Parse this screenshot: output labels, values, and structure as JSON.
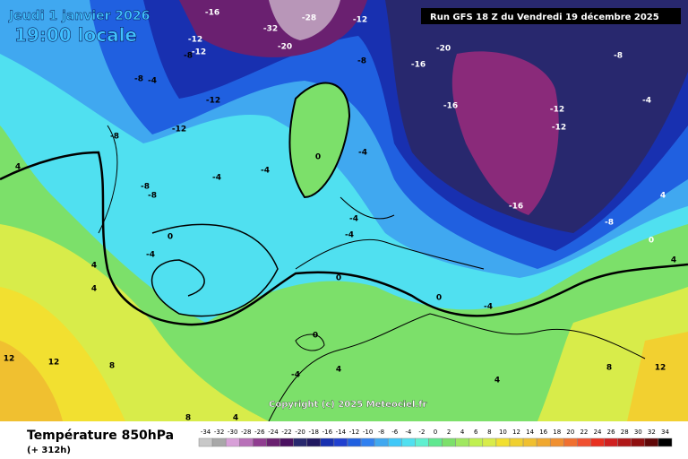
{
  "header": {
    "date": "Jeudi 1 janvier 2026",
    "time": "19:00 locale",
    "run": "Run GFS 18 Z du Vendredi 19 décembre 2025"
  },
  "footer": {
    "copyright": "Copyright (c) 2025 Meteociel.fr",
    "field": "Température 850hPa",
    "lead": "(+ 312h)"
  },
  "legend": {
    "labels": [
      "-34",
      "-32",
      "-30",
      "-28",
      "-26",
      "-24",
      "-22",
      "-20",
      "-18",
      "-16",
      "-14",
      "-12",
      "-10",
      "-8",
      "-6",
      "-4",
      "-2",
      "0",
      "2",
      "4",
      "6",
      "8",
      "10",
      "12",
      "14",
      "16",
      "18",
      "20",
      "22",
      "24",
      "26",
      "28",
      "30",
      "32",
      "34"
    ],
    "colors": [
      "#c8c8c8",
      "#a8a8a8",
      "#d8a0d8",
      "#b870b8",
      "#903c90",
      "#6a2070",
      "#4a1060",
      "#28286e",
      "#201860",
      "#1830b0",
      "#2040d0",
      "#2060e0",
      "#3080f0",
      "#40a8f0",
      "#40c8f8",
      "#50e0f0",
      "#60f0d0",
      "#60e890",
      "#7ce06a",
      "#a0e860",
      "#c0f050",
      "#d8ec4a",
      "#f2e030",
      "#f0d030",
      "#f0c030",
      "#f0a830",
      "#f09030",
      "#f07030",
      "#f05030",
      "#e83020",
      "#d02020",
      "#b01818",
      "#901010",
      "#600808",
      "#000000"
    ]
  },
  "map_labels": [
    "-16",
    "-12",
    "-12",
    "-8",
    "-8",
    "-4",
    "-12",
    "-12",
    "-8",
    "-4",
    "-8",
    "-8",
    "0",
    "-4",
    "4",
    "4",
    "0",
    "0",
    "-4",
    "4",
    "4",
    "8",
    "12",
    "12",
    "12",
    "8",
    "-20",
    "-16",
    "-16",
    "-12",
    "-12",
    "-16",
    "-8",
    "-8",
    "-4",
    "4",
    "0",
    "4",
    "-4",
    "-4",
    "-4",
    "-4",
    "0",
    "-4",
    "-32",
    "-20",
    "-28",
    "4",
    "0",
    "-12",
    "-8",
    "4",
    "8"
  ]
}
